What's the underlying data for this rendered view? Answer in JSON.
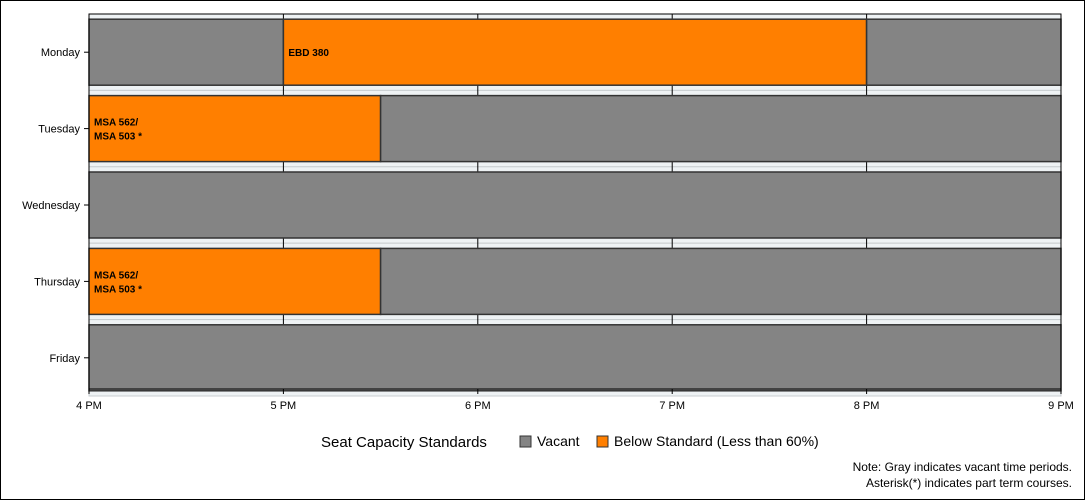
{
  "chart_data": {
    "type": "bar",
    "orientation": "horizontal-timeline",
    "categories": [
      "Monday",
      "Tuesday",
      "Wednesday",
      "Thursday",
      "Friday"
    ],
    "x_ticks": [
      "4 PM",
      "5 PM",
      "6 PM",
      "7 PM",
      "8 PM",
      "9 PM"
    ],
    "xlim": [
      16,
      21
    ],
    "grid": true,
    "legend": {
      "title": "Seat Capacity Standards",
      "placement": "bottom",
      "entries": [
        {
          "label": "Vacant",
          "key": "vacant"
        },
        {
          "label": "Below Standard (Less than 60%)",
          "key": "below"
        }
      ]
    },
    "colors": {
      "vacant": "#848484",
      "below": "#ff7f00",
      "band": "#eef2f4",
      "bar_border": "#333333"
    },
    "series": [
      {
        "day": "Monday",
        "segments": [
          {
            "start": 16,
            "end": 17,
            "status": "vacant",
            "label": []
          },
          {
            "start": 17,
            "end": 20,
            "status": "below",
            "label": [
              "EBD 380"
            ]
          },
          {
            "start": 20,
            "end": 21,
            "status": "vacant",
            "label": []
          }
        ]
      },
      {
        "day": "Tuesday",
        "segments": [
          {
            "start": 16,
            "end": 17.5,
            "status": "below",
            "label": [
              "MSA 562/",
              "MSA 503 *"
            ]
          },
          {
            "start": 17.5,
            "end": 21,
            "status": "vacant",
            "label": []
          }
        ]
      },
      {
        "day": "Wednesday",
        "segments": [
          {
            "start": 16,
            "end": 21,
            "status": "vacant",
            "label": []
          }
        ]
      },
      {
        "day": "Thursday",
        "segments": [
          {
            "start": 16,
            "end": 17.5,
            "status": "below",
            "label": [
              "MSA 562/",
              "MSA 503 *"
            ]
          },
          {
            "start": 17.5,
            "end": 21,
            "status": "vacant",
            "label": []
          }
        ]
      },
      {
        "day": "Friday",
        "segments": [
          {
            "start": 16,
            "end": 21,
            "status": "vacant",
            "label": []
          }
        ]
      }
    ],
    "notes": [
      "Note: Gray indicates vacant time periods.",
      "Asterisk(*) indicates part term courses."
    ]
  }
}
